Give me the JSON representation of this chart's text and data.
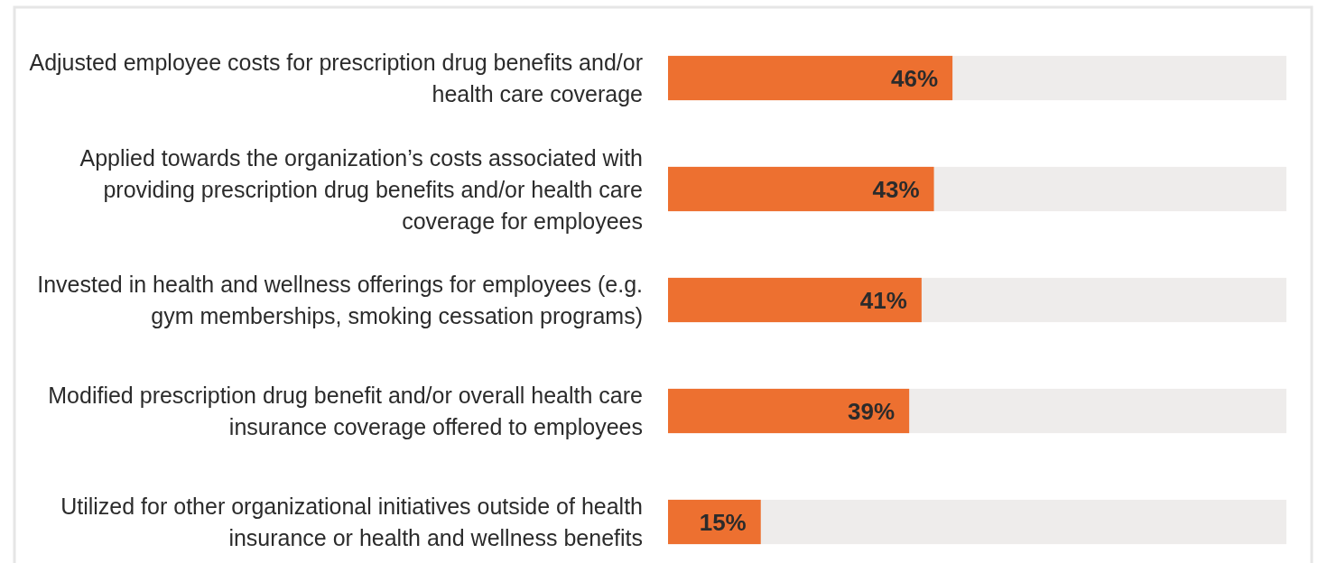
{
  "chart_data": {
    "type": "bar",
    "orientation": "horizontal",
    "categories": [
      "Adjusted employee costs for prescription drug benefits and/or health care coverage",
      "Applied towards the organization’s costs associated with providing prescription drug benefits and/or health care coverage for employees",
      "Invested in health and wellness offerings for employees (e.g. gym memberships, smoking cessation programs)",
      "Modified prescription drug benefit and/or overall health care insurance coverage offered to employees",
      "Utilized for other organizational initiatives outside of health insurance or health and wellness benefits"
    ],
    "values": [
      46,
      43,
      41,
      39,
      15
    ],
    "value_labels": [
      "46%",
      "43%",
      "41%",
      "39%",
      "15%"
    ],
    "color": "#ed7030",
    "xlim": [
      0,
      100
    ],
    "tick_labels": "y"
  }
}
